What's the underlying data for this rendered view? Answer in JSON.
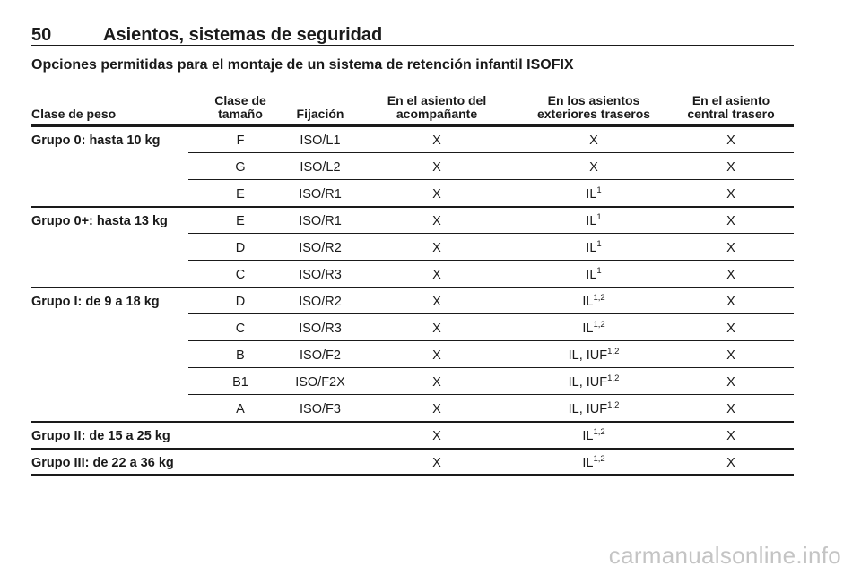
{
  "header": {
    "page_number": "50",
    "title": "Asientos, sistemas de seguridad"
  },
  "subtitle": "Opciones permitidas para el montaje de un sistema de retención infantil ISOFIX",
  "table": {
    "columns": [
      "Clase de peso",
      "Clase de\ntamaño",
      "Fijación",
      "En el asiento del\nacompañante",
      "En los asientos\nexteriores traseros",
      "En el asiento\ncentral trasero"
    ],
    "groups": [
      {
        "label": "Grupo 0: hasta 10 kg",
        "rows": [
          {
            "size": "F",
            "fixation": "ISO/L1",
            "front": "X",
            "outer": "X",
            "center": "X"
          },
          {
            "size": "G",
            "fixation": "ISO/L2",
            "front": "X",
            "outer": "X",
            "center": "X"
          },
          {
            "size": "E",
            "fixation": "ISO/R1",
            "front": "X",
            "outer": {
              "text": "IL",
              "sup": "1"
            },
            "center": "X"
          }
        ]
      },
      {
        "label": "Grupo 0+: hasta 13 kg",
        "rows": [
          {
            "size": "E",
            "fixation": "ISO/R1",
            "front": "X",
            "outer": {
              "text": "IL",
              "sup": "1"
            },
            "center": "X"
          },
          {
            "size": "D",
            "fixation": "ISO/R2",
            "front": "X",
            "outer": {
              "text": "IL",
              "sup": "1"
            },
            "center": "X"
          },
          {
            "size": "C",
            "fixation": "ISO/R3",
            "front": "X",
            "outer": {
              "text": "IL",
              "sup": "1"
            },
            "center": "X"
          }
        ]
      },
      {
        "label": "Grupo I: de 9 a 18 kg",
        "rows": [
          {
            "size": "D",
            "fixation": "ISO/R2",
            "front": "X",
            "outer": {
              "text": "IL",
              "sup": "1,2"
            },
            "center": "X"
          },
          {
            "size": "C",
            "fixation": "ISO/R3",
            "front": "X",
            "outer": {
              "text": "IL",
              "sup": "1,2"
            },
            "center": "X"
          },
          {
            "size": "B",
            "fixation": "ISO/F2",
            "front": "X",
            "outer": {
              "text": "IL, IUF",
              "sup": "1,2"
            },
            "center": "X"
          },
          {
            "size": "B1",
            "fixation": "ISO/F2X",
            "front": "X",
            "outer": {
              "text": "IL, IUF",
              "sup": "1,2"
            },
            "center": "X"
          },
          {
            "size": "A",
            "fixation": "ISO/F3",
            "front": "X",
            "outer": {
              "text": "IL, IUF",
              "sup": "1,2"
            },
            "center": "X"
          }
        ]
      },
      {
        "label": "Grupo II: de 15 a 25 kg",
        "rows": [
          {
            "front": "X",
            "outer": {
              "text": "IL",
              "sup": "1,2"
            },
            "center": "X"
          }
        ]
      },
      {
        "label": "Grupo III: de 22 a 36 kg",
        "rows": [
          {
            "front": "X",
            "outer": {
              "text": "IL",
              "sup": "1,2"
            },
            "center": "X"
          }
        ]
      }
    ]
  },
  "watermark": "carmanualsonline.info"
}
